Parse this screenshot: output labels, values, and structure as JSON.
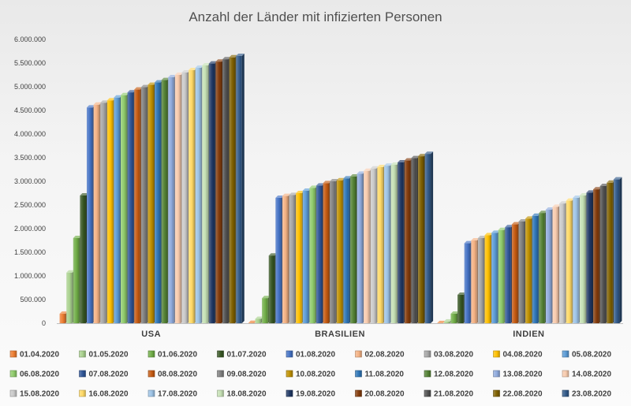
{
  "chart_data": {
    "type": "bar",
    "title": "Anzahl der Länder mit infizierten Personen",
    "xlabel": "",
    "ylabel": "",
    "ylim": [
      0,
      6000000
    ],
    "yticks": [
      0,
      500000,
      1000000,
      1500000,
      2000000,
      2500000,
      3000000,
      3500000,
      4000000,
      4500000,
      5000000,
      5500000,
      6000000
    ],
    "ytick_labels": [
      "0",
      "500.000",
      "1.000.000",
      "1.500.000",
      "2.000.000",
      "2.500.000",
      "3.000.000",
      "3.500.000",
      "4.000.000",
      "4.500.000",
      "5.000.000",
      "5.500.000",
      "6.000.000"
    ],
    "grid": false,
    "legend_position": "bottom",
    "categories": [
      "USA",
      "BRASILIEN",
      "INDIEN"
    ],
    "series": [
      {
        "name": "01.04.2020",
        "color": "#ED7D31",
        "values": [
          200000,
          6000,
          2000
        ]
      },
      {
        "name": "01.05.2020",
        "color": "#A9D18E",
        "values": [
          1070000,
          92000,
          35000
        ]
      },
      {
        "name": "01.06.2020",
        "color": "#70AD47",
        "values": [
          1800000,
          530000,
          200000
        ]
      },
      {
        "name": "01.07.2020",
        "color": "#375623",
        "values": [
          2700000,
          1430000,
          600000
        ]
      },
      {
        "name": "01.08.2020",
        "color": "#4472C4",
        "values": [
          4560000,
          2650000,
          1690000
        ]
      },
      {
        "name": "02.08.2020",
        "color": "#F4B183",
        "values": [
          4620000,
          2690000,
          1750000
        ]
      },
      {
        "name": "03.08.2020",
        "color": "#A5A5A5",
        "values": [
          4660000,
          2710000,
          1800000
        ]
      },
      {
        "name": "04.08.2020",
        "color": "#FFC000",
        "values": [
          4710000,
          2750000,
          1860000
        ]
      },
      {
        "name": "05.08.2020",
        "color": "#5B9BD5",
        "values": [
          4770000,
          2800000,
          1910000
        ]
      },
      {
        "name": "06.08.2020",
        "color": "#8FCB6B",
        "values": [
          4820000,
          2860000,
          1970000
        ]
      },
      {
        "name": "07.08.2020",
        "color": "#2F5597",
        "values": [
          4880000,
          2910000,
          2030000
        ]
      },
      {
        "name": "08.08.2020",
        "color": "#C55A11",
        "values": [
          4940000,
          2960000,
          2090000
        ]
      },
      {
        "name": "09.08.2020",
        "color": "#7F7F7F",
        "values": [
          4990000,
          3000000,
          2150000
        ]
      },
      {
        "name": "10.08.2020",
        "color": "#BF9000",
        "values": [
          5040000,
          3020000,
          2210000
        ]
      },
      {
        "name": "11.08.2020",
        "color": "#2E75B6",
        "values": [
          5090000,
          3060000,
          2270000
        ]
      },
      {
        "name": "12.08.2020",
        "color": "#548235",
        "values": [
          5140000,
          3100000,
          2330000
        ]
      },
      {
        "name": "13.08.2020",
        "color": "#8FAADC",
        "values": [
          5200000,
          3160000,
          2400000
        ]
      },
      {
        "name": "14.08.2020",
        "color": "#F8CBAD",
        "values": [
          5250000,
          3220000,
          2460000
        ]
      },
      {
        "name": "15.08.2020",
        "color": "#C9C9C9",
        "values": [
          5300000,
          3270000,
          2530000
        ]
      },
      {
        "name": "16.08.2020",
        "color": "#FFD966",
        "values": [
          5350000,
          3300000,
          2590000
        ]
      },
      {
        "name": "17.08.2020",
        "color": "#9DC3E6",
        "values": [
          5400000,
          3330000,
          2650000
        ]
      },
      {
        "name": "18.08.2020",
        "color": "#C5E0B4",
        "values": [
          5450000,
          3350000,
          2700000
        ]
      },
      {
        "name": "19.08.2020",
        "color": "#203864",
        "values": [
          5490000,
          3400000,
          2760000
        ]
      },
      {
        "name": "20.08.2020",
        "color": "#843C0C",
        "values": [
          5530000,
          3440000,
          2830000
        ]
      },
      {
        "name": "21.08.2020",
        "color": "#525252",
        "values": [
          5580000,
          3490000,
          2900000
        ]
      },
      {
        "name": "22.08.2020",
        "color": "#7F6000",
        "values": [
          5620000,
          3530000,
          2970000
        ]
      },
      {
        "name": "23.08.2020",
        "color": "#335B8A",
        "values": [
          5650000,
          3580000,
          3040000
        ]
      }
    ]
  }
}
